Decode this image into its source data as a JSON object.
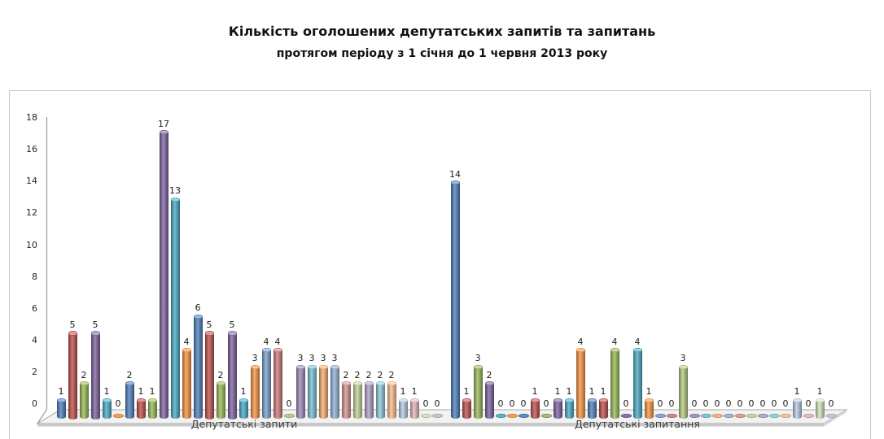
{
  "page": {
    "background": "#ffffff",
    "frame_border_color": "#c6c6c6"
  },
  "chart_data": {
    "type": "bar",
    "style": "3d-cylinder",
    "title": "Кількість оголошених депутатських запитів та запитань",
    "subtitle": "протягом періоду з 1 січня до 1 червня 2013 року",
    "categories": [
      "Депутатські запити",
      "Депутатські запитання"
    ],
    "ylim": [
      0,
      18
    ],
    "yticks": [
      0,
      2,
      4,
      6,
      8,
      10,
      12,
      14,
      16,
      18
    ],
    "grid": false,
    "legend": "none",
    "data_labels": true,
    "floor_color": "#f2f2f2",
    "axis_color": "#9a9a9a",
    "series": [
      {
        "color": "#4f81bd",
        "values": [
          1,
          14
        ]
      },
      {
        "color": "#c0504d",
        "values": [
          5,
          1
        ]
      },
      {
        "color": "#9bbb59",
        "values": [
          2,
          3
        ]
      },
      {
        "color": "#8064a2",
        "values": [
          5,
          2
        ]
      },
      {
        "color": "#4bacc6",
        "values": [
          1,
          0
        ]
      },
      {
        "color": "#f79646",
        "values": [
          0,
          0
        ]
      },
      {
        "color": "#4f81bd",
        "values": [
          2,
          0
        ]
      },
      {
        "color": "#c0504d",
        "values": [
          1,
          1
        ]
      },
      {
        "color": "#9bbb59",
        "values": [
          1,
          0
        ]
      },
      {
        "color": "#8064a2",
        "values": [
          17,
          1
        ]
      },
      {
        "color": "#4bacc6",
        "values": [
          13,
          1
        ]
      },
      {
        "color": "#f79646",
        "values": [
          4,
          4
        ]
      },
      {
        "color": "#4f81bd",
        "values": [
          6,
          1
        ]
      },
      {
        "color": "#c0504d",
        "values": [
          5,
          1
        ]
      },
      {
        "color": "#9bbb59",
        "values": [
          2,
          4
        ]
      },
      {
        "color": "#8064a2",
        "values": [
          5,
          0
        ]
      },
      {
        "color": "#4bacc6",
        "values": [
          1,
          4
        ]
      },
      {
        "color": "#f79646",
        "values": [
          3,
          1
        ]
      },
      {
        "color": "#7ba0cd",
        "values": [
          4,
          0
        ]
      },
      {
        "color": "#d07c7a",
        "values": [
          4,
          0
        ]
      },
      {
        "color": "#b4cc83",
        "values": [
          0,
          3
        ]
      },
      {
        "color": "#a08bb9",
        "values": [
          3,
          0
        ]
      },
      {
        "color": "#78c1d4",
        "values": [
          3,
          0
        ]
      },
      {
        "color": "#f9b074",
        "values": [
          3,
          0
        ]
      },
      {
        "color": "#95b3d7",
        "values": [
          3,
          0
        ]
      },
      {
        "color": "#d99694",
        "values": [
          2,
          0
        ]
      },
      {
        "color": "#c3d69b",
        "values": [
          2,
          0
        ]
      },
      {
        "color": "#b3a2c7",
        "values": [
          2,
          0
        ]
      },
      {
        "color": "#93cddd",
        "values": [
          2,
          0
        ]
      },
      {
        "color": "#fac090",
        "values": [
          2,
          0
        ]
      },
      {
        "color": "#b8cce4",
        "values": [
          1,
          1
        ]
      },
      {
        "color": "#e5b8b7",
        "values": [
          1,
          0
        ]
      },
      {
        "color": "#d7e4bd",
        "values": [
          0,
          1
        ]
      },
      {
        "color": "#ccc1da",
        "values": [
          0,
          0
        ]
      }
    ]
  }
}
